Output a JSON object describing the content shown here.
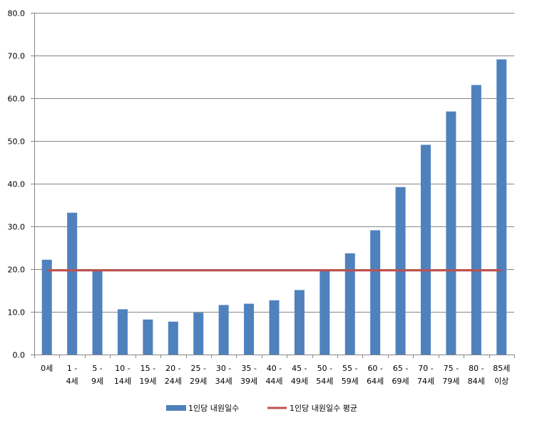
{
  "chart_data": {
    "type": "bar",
    "title": "",
    "xlabel": "",
    "ylabel": "",
    "ylim": [
      0,
      80
    ],
    "yticks": [
      "0.0",
      "10.0",
      "20.0",
      "30.0",
      "40.0",
      "50.0",
      "60.0",
      "70.0",
      "80.0"
    ],
    "categories": [
      [
        "0세"
      ],
      [
        "1 -",
        "4세"
      ],
      [
        "5 -",
        "9세"
      ],
      [
        "10 -",
        "14세"
      ],
      [
        "15 -",
        "19세"
      ],
      [
        "20 -",
        "24세"
      ],
      [
        "25 -",
        "29세"
      ],
      [
        "30 -",
        "34세"
      ],
      [
        "35 -",
        "39세"
      ],
      [
        "40 -",
        "44세"
      ],
      [
        "45 -",
        "49세"
      ],
      [
        "50 -",
        "54세"
      ],
      [
        "55 -",
        "59세"
      ],
      [
        "60 -",
        "64세"
      ],
      [
        "65 -",
        "69세"
      ],
      [
        "70 -",
        "74세"
      ],
      [
        "75 -",
        "79세"
      ],
      [
        "80 -",
        "84세"
      ],
      [
        "85세",
        "이상"
      ]
    ],
    "series": [
      {
        "name": "1인당 내원일수",
        "kind": "bar",
        "color": "#4F81BD",
        "values": [
          22.2,
          33.2,
          19.8,
          10.6,
          8.2,
          7.7,
          9.8,
          11.6,
          11.9,
          12.7,
          15.1,
          19.7,
          23.7,
          29.1,
          39.2,
          49.1,
          56.9,
          63.1,
          69.1
        ]
      },
      {
        "name": "1인당 내원일수 평균",
        "kind": "line",
        "color": "#C0504D",
        "value": 19.7
      }
    ],
    "grid": true,
    "legend_position": "bottom"
  }
}
